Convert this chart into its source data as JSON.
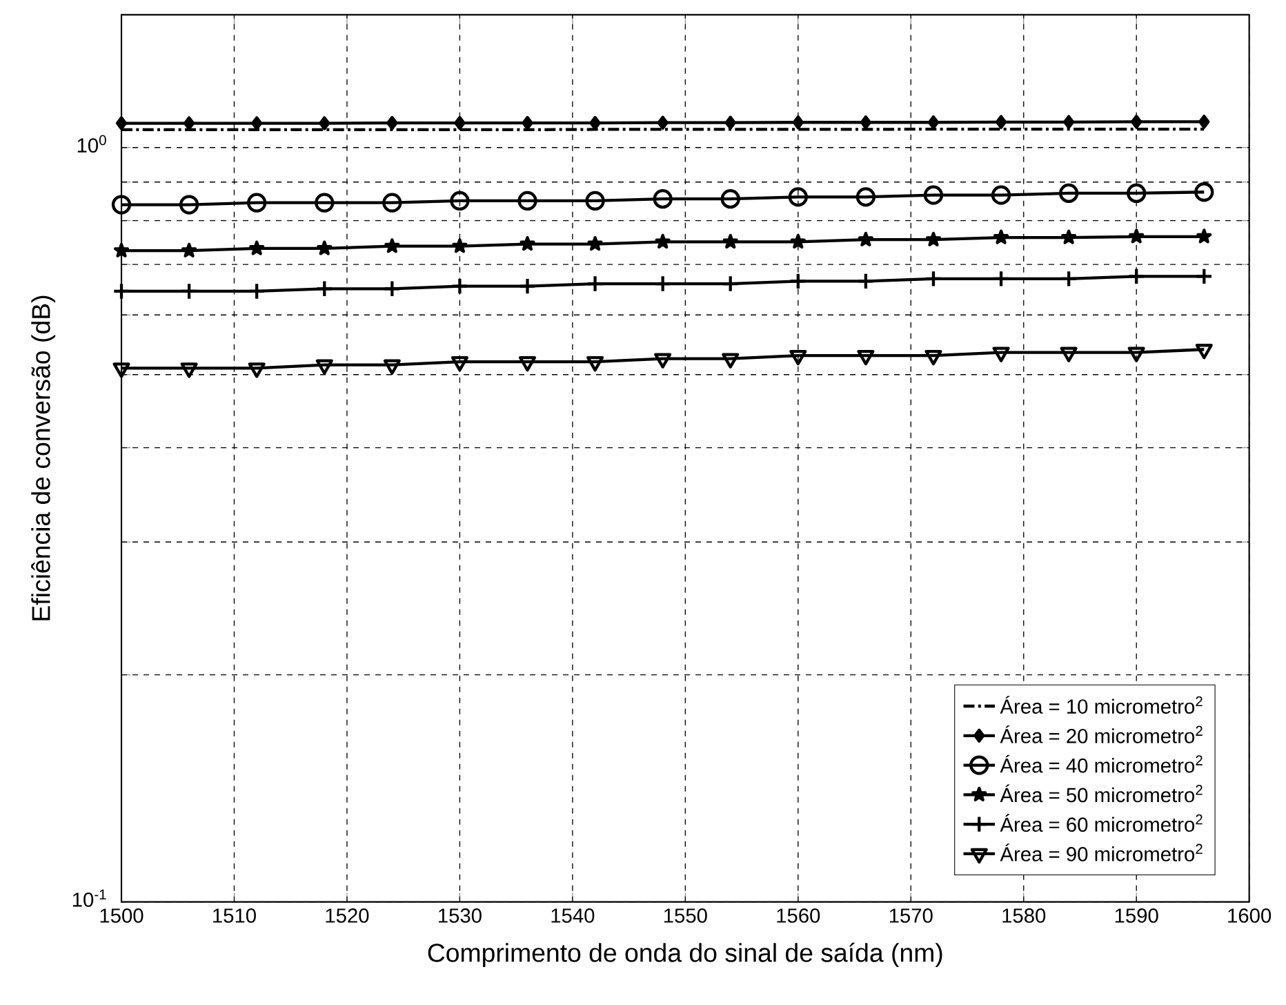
{
  "chart_data": {
    "type": "line",
    "xlabel": "Comprimento de onda do sinal de saída (nm)",
    "ylabel": "Eficiência de conversão (dB)",
    "x": [
      1500,
      1506,
      1512,
      1518,
      1524,
      1530,
      1536,
      1542,
      1548,
      1554,
      1560,
      1566,
      1572,
      1578,
      1584,
      1590,
      1596
    ],
    "series": [
      {
        "name": "Área = 10 micrometro$^{2}$",
        "color": "#000000",
        "marker": "none",
        "line_style": "dashdot",
        "values": [
          1.056,
          1.056,
          1.056,
          1.056,
          1.056,
          1.056,
          1.056,
          1.057,
          1.057,
          1.057,
          1.057,
          1.057,
          1.058,
          1.058,
          1.058,
          1.058,
          1.058
        ]
      },
      {
        "name": "Área = 20 micrometro$^{2}$",
        "color": "#000000",
        "marker": "diamond",
        "line_style": "solid",
        "values": [
          1.077,
          1.077,
          1.077,
          1.077,
          1.078,
          1.078,
          1.078,
          1.078,
          1.079,
          1.079,
          1.08,
          1.08,
          1.08,
          1.081,
          1.081,
          1.082,
          1.082
        ]
      },
      {
        "name": "Área = 40 micrometro$^{2}$",
        "color": "#000000",
        "marker": "circle",
        "line_style": "solid",
        "values": [
          0.84,
          0.84,
          0.845,
          0.845,
          0.845,
          0.85,
          0.85,
          0.85,
          0.855,
          0.855,
          0.86,
          0.86,
          0.865,
          0.865,
          0.87,
          0.87,
          0.873
        ]
      },
      {
        "name": "Área = 50 micrometro$^{2}$",
        "color": "#000000",
        "marker": "star",
        "line_style": "solid",
        "values": [
          0.73,
          0.73,
          0.735,
          0.735,
          0.74,
          0.74,
          0.745,
          0.745,
          0.75,
          0.75,
          0.75,
          0.755,
          0.755,
          0.76,
          0.76,
          0.762,
          0.762
        ]
      },
      {
        "name": "Área = 60 micrometro$^{2}$",
        "color": "#000000",
        "marker": "cross",
        "line_style": "solid",
        "values": [
          0.645,
          0.645,
          0.645,
          0.65,
          0.65,
          0.655,
          0.655,
          0.66,
          0.66,
          0.66,
          0.665,
          0.665,
          0.67,
          0.67,
          0.67,
          0.675,
          0.675
        ]
      },
      {
        "name": "Área = 90 micrometro$^{2}$",
        "color": "#000000",
        "marker": "triangle",
        "line_style": "solid",
        "values": [
          0.51,
          0.51,
          0.51,
          0.515,
          0.515,
          0.52,
          0.52,
          0.52,
          0.525,
          0.525,
          0.53,
          0.53,
          0.53,
          0.535,
          0.535,
          0.535,
          0.54
        ]
      }
    ],
    "log": "y",
    "xlim": [
      1500,
      1600
    ],
    "ylim": [
      0.1,
      1.5
    ],
    "xticks": [
      1500,
      1510,
      1520,
      1530,
      1540,
      1550,
      1560,
      1570,
      1580,
      1590,
      1600
    ],
    "yticks": [
      {
        "value": 0.1,
        "label": "10$^{-1}$"
      },
      {
        "value": 0.2,
        "label": null
      },
      {
        "value": 0.3,
        "label": null
      },
      {
        "value": 0.4,
        "label": null
      },
      {
        "value": 0.5,
        "label": null
      },
      {
        "value": 0.6,
        "label": null
      },
      {
        "value": 0.7,
        "label": null
      },
      {
        "value": 0.8,
        "label": null
      },
      {
        "value": 0.9,
        "label": null
      },
      {
        "value": 1,
        "label": "10$^{0}$"
      }
    ],
    "grid": true,
    "legend": "bottom right"
  }
}
